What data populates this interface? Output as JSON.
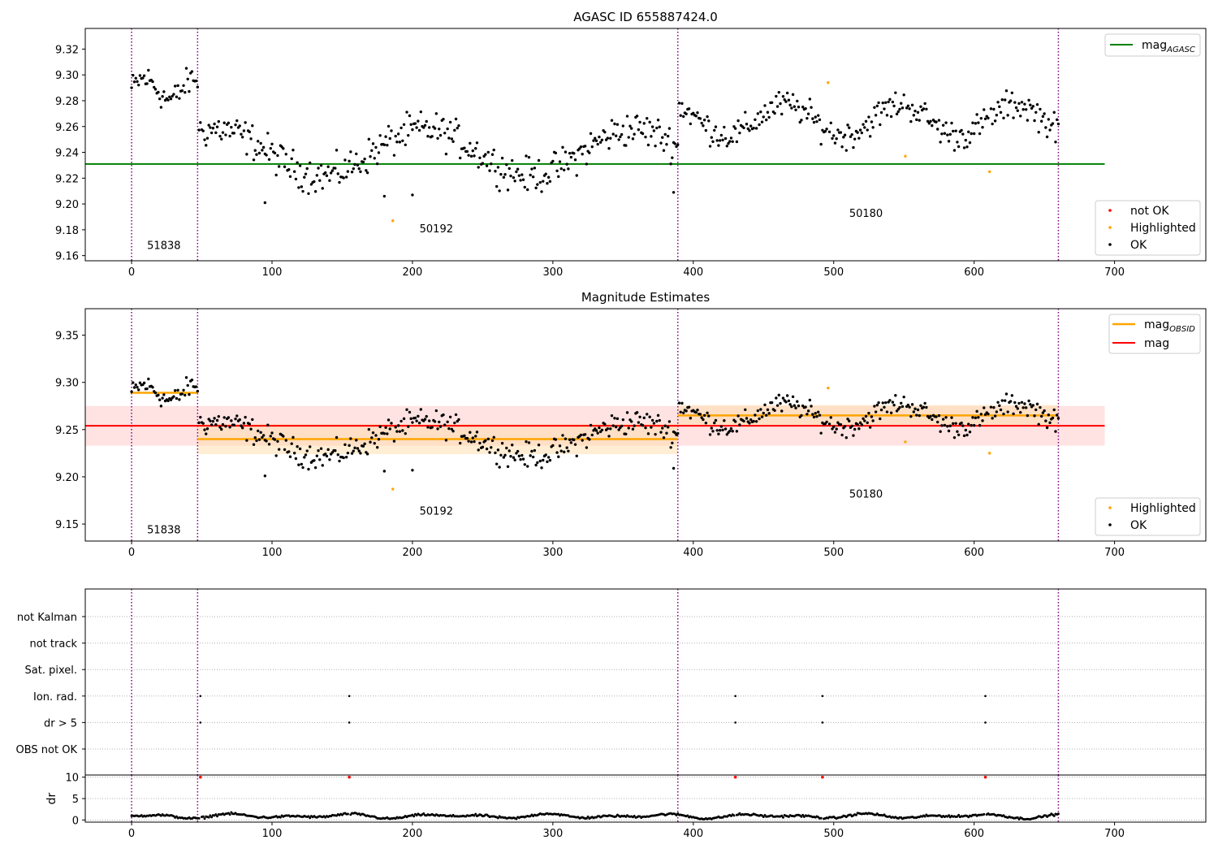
{
  "chart_data": [
    {
      "type": "scatter",
      "title": "AGASC ID 655887424.0",
      "xlabel": "",
      "ylabel": "",
      "xlim": [
        -33,
        765
      ],
      "ylim": [
        9.156,
        9.336
      ],
      "xticks": [
        0,
        100,
        200,
        300,
        400,
        500,
        600,
        700
      ],
      "yticks": [
        9.16,
        9.18,
        9.2,
        9.22,
        9.24,
        9.26,
        9.28,
        9.3,
        9.32
      ],
      "obsid_boundaries": [
        0,
        47,
        389,
        660
      ],
      "obsid_labels": [
        {
          "text": "51838",
          "x": 23,
          "y": 9.165
        },
        {
          "text": "50192",
          "x": 217,
          "y": 9.178
        },
        {
          "text": "50180",
          "x": 523,
          "y": 9.19
        }
      ],
      "segments": [
        {
          "x0": 0,
          "x1": 47,
          "mean": 9.289,
          "amp": 0.008,
          "scatter": 0.01
        },
        {
          "x0": 47,
          "x1": 389,
          "mean": 9.24,
          "amp": 0.018,
          "scatter": 0.012
        },
        {
          "x0": 389,
          "x1": 660,
          "mean": 9.265,
          "amp": 0.012,
          "scatter": 0.01
        }
      ],
      "lines": [
        {
          "name": "mag",
          "sub": "AGASC",
          "color": "#008000",
          "y": 9.231,
          "x": [
            -33,
            693
          ]
        }
      ],
      "highlighted": [
        [
          186,
          9.187
        ],
        [
          496,
          9.294
        ],
        [
          551,
          9.237
        ],
        [
          611,
          9.225
        ]
      ],
      "legend_lines": [
        {
          "name": "mag",
          "sub": "AGASC",
          "color": "#008000"
        }
      ],
      "legend_points": [
        {
          "name": "not OK",
          "color": "#ff0000"
        },
        {
          "name": "Highlighted",
          "color": "#ffa500"
        },
        {
          "name": "OK",
          "color": "#000000"
        }
      ],
      "legend_lines_position": "upper right",
      "legend_points_position": "lower right"
    },
    {
      "type": "scatter",
      "title": "Magnitude Estimates",
      "xlabel": "",
      "ylabel": "",
      "xlim": [
        -33,
        765
      ],
      "ylim": [
        9.132,
        9.378
      ],
      "xticks": [
        0,
        100,
        200,
        300,
        400,
        500,
        600,
        700
      ],
      "yticks": [
        9.15,
        9.2,
        9.25,
        9.3,
        9.35
      ],
      "obsid_boundaries": [
        0,
        47,
        389,
        660
      ],
      "obsid_labels": [
        {
          "text": "51838",
          "x": 23,
          "y": 9.14
        },
        {
          "text": "50192",
          "x": 217,
          "y": 9.16
        },
        {
          "text": "50180",
          "x": 523,
          "y": 9.178
        }
      ],
      "band": {
        "x0": -33,
        "x1": 693,
        "y0": 9.233,
        "y1": 9.275,
        "color": "#ff9999"
      },
      "obsid_bands": [
        {
          "x0": 47,
          "x1": 389,
          "y0": 9.224,
          "y1": 9.256,
          "color": "#ffd9a0"
        },
        {
          "x0": 389,
          "x1": 660,
          "y0": 9.254,
          "y1": 9.276,
          "color": "#ffd9a0"
        }
      ],
      "lines": [
        {
          "name": "mag",
          "sub": "",
          "color": "#ff0000",
          "y": 9.254,
          "x": [
            -33,
            693
          ]
        }
      ],
      "obsid_means": [
        {
          "x0": 0,
          "x1": 47,
          "y": 9.289
        },
        {
          "x0": 47,
          "x1": 389,
          "y": 9.24
        },
        {
          "x0": 389,
          "x1": 660,
          "y": 9.265
        }
      ],
      "highlighted": [
        [
          186,
          9.187
        ],
        [
          496,
          9.294
        ],
        [
          551,
          9.237
        ],
        [
          611,
          9.225
        ]
      ],
      "legend_lines": [
        {
          "name": "mag",
          "sub": "OBSID",
          "color": "#ffa500"
        },
        {
          "name": "mag",
          "sub": "",
          "color": "#ff0000"
        }
      ],
      "legend_points": [
        {
          "name": "Highlighted",
          "color": "#ffa500"
        },
        {
          "name": "OK",
          "color": "#000000"
        }
      ],
      "legend_lines_position": "upper right",
      "legend_points_position": "lower right"
    },
    {
      "type": "scatter",
      "title": "",
      "xlim": [
        -33,
        765
      ],
      "xticks": [
        0,
        100,
        200,
        300,
        400,
        500,
        600,
        700
      ],
      "obsid_boundaries": [
        0,
        47,
        389,
        660
      ],
      "flag_rows": [
        "not Kalman",
        "not track",
        "Sat. pixel.",
        "Ion. rad.",
        "dr > 5",
        "OBS not OK"
      ],
      "flag_points": {
        "Ion. rad.": [
          49,
          155,
          430,
          492,
          608
        ],
        "dr > 5": [
          49,
          155,
          430,
          492,
          608
        ]
      }
    },
    {
      "type": "scatter",
      "title": "",
      "xlabel": "",
      "ylabel": "dr",
      "xlim": [
        -33,
        765
      ],
      "ylim": [
        -0.5,
        10.5
      ],
      "xticks": [
        0,
        100,
        200,
        300,
        400,
        500,
        600,
        700
      ],
      "yticks": [
        0,
        5,
        10
      ],
      "obsid_boundaries": [
        0,
        47,
        389,
        660
      ],
      "outliers": [
        49,
        155,
        430,
        492,
        608
      ],
      "dr_base": 0.9,
      "dr_amp": 0.6
    }
  ]
}
